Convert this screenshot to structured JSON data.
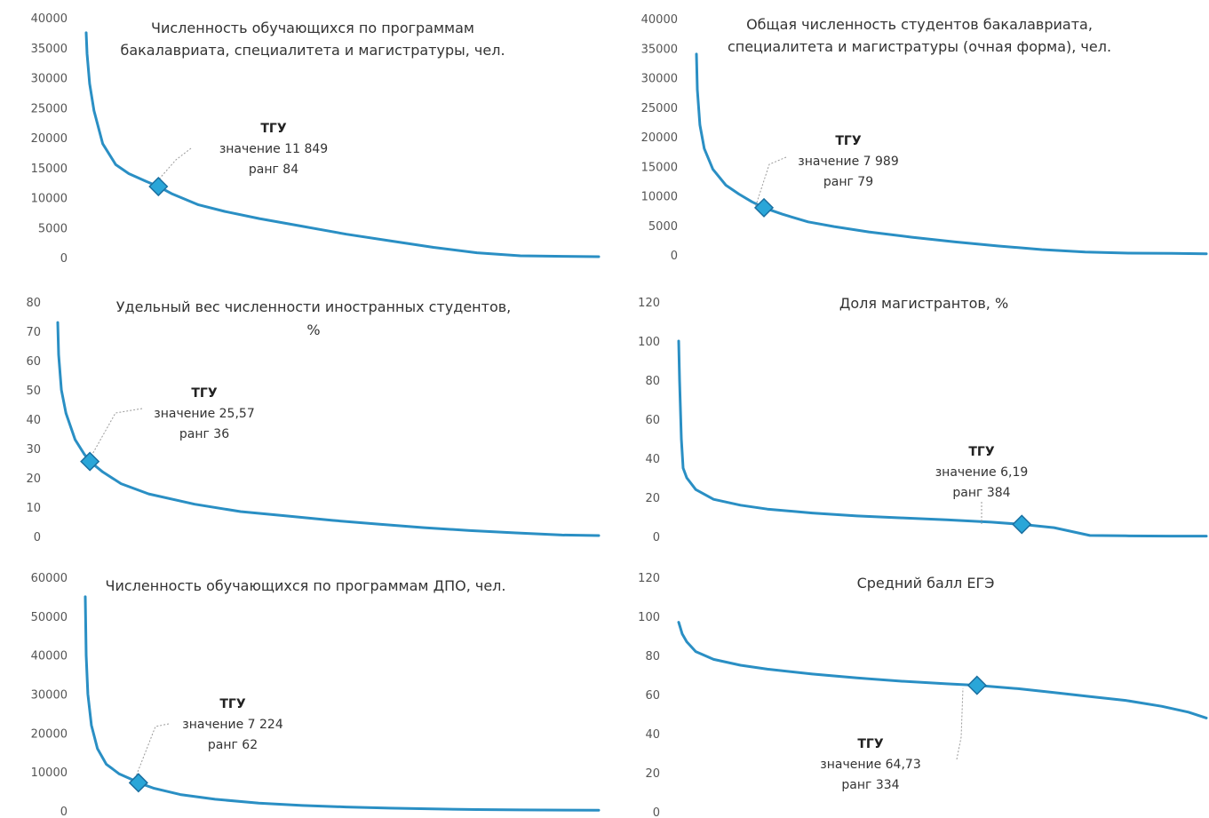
{
  "colors": {
    "line": "#2a8fc4",
    "marker": "#2aa6d8",
    "marker_edge": "#1a6fa0",
    "text": "#333333"
  },
  "chart_data": [
    {
      "type": "line",
      "title": [
        "Численность обучающихся по программам",
        "бакалавриата, специалитета и магистратуры, чел."
      ],
      "ylim": [
        0,
        40000
      ],
      "yticks": [
        "40000",
        "35000",
        "30000",
        "25000",
        "20000",
        "15000",
        "10000",
        "5000",
        "0"
      ],
      "tick_values": [
        40000,
        35000,
        30000,
        25000,
        20000,
        15000,
        10000,
        5000,
        0
      ],
      "xlim": [
        1,
        590
      ],
      "x": [
        1,
        2,
        5,
        10,
        20,
        35,
        50,
        70,
        84,
        100,
        130,
        160,
        200,
        250,
        300,
        350,
        400,
        450,
        500,
        550,
        590
      ],
      "y": [
        37500,
        34000,
        29000,
        24500,
        19000,
        15500,
        14000,
        12700,
        11849,
        10600,
        8800,
        7700,
        6500,
        5200,
        3900,
        2800,
        1700,
        800,
        300,
        200,
        150
      ],
      "highlight": {
        "label": "ТГУ",
        "value_text": "значение 11 849",
        "rank_text": "ранг 84",
        "x": 84,
        "y": 11849
      }
    },
    {
      "type": "line",
      "title": [
        "Общая численность студентов бакалавриата,",
        "специалитета и магистратуры (очная форма), чел."
      ],
      "ylim": [
        0,
        40000
      ],
      "yticks": [
        "40000",
        "35000",
        "30000",
        "25000",
        "20000",
        "15000",
        "10000",
        "5000",
        "0"
      ],
      "tick_values": [
        40000,
        35000,
        30000,
        25000,
        20000,
        15000,
        10000,
        5000,
        0
      ],
      "xlim": [
        1,
        590
      ],
      "x": [
        1,
        2,
        5,
        10,
        20,
        35,
        50,
        65,
        79,
        100,
        130,
        160,
        200,
        250,
        300,
        350,
        400,
        450,
        500,
        550,
        590
      ],
      "y": [
        34000,
        28000,
        22000,
        18000,
        14500,
        11800,
        10300,
        9000,
        7989,
        6900,
        5600,
        4800,
        3900,
        3000,
        2200,
        1500,
        900,
        500,
        300,
        250,
        200
      ],
      "highlight": {
        "label": "ТГУ",
        "value_text": "значение 7 989",
        "rank_text": "ранг 79",
        "x": 79,
        "y": 7989
      }
    },
    {
      "type": "line",
      "title": [
        "Удельный вес численности иностранных студентов,",
        "%"
      ],
      "ylim": [
        0,
        80
      ],
      "yticks": [
        "80",
        "70",
        "60",
        "50",
        "40",
        "30",
        "20",
        "10",
        "0"
      ],
      "tick_values": [
        80,
        70,
        60,
        50,
        40,
        30,
        20,
        10,
        0
      ],
      "xlim": [
        1,
        590
      ],
      "x": [
        1,
        2,
        5,
        10,
        20,
        30,
        36,
        50,
        70,
        100,
        150,
        200,
        250,
        300,
        350,
        400,
        450,
        500,
        550,
        590
      ],
      "y": [
        73,
        62,
        50,
        42,
        33,
        28,
        25.57,
        22,
        18,
        14.5,
        11,
        8.5,
        7,
        5.5,
        4.2,
        3,
        2,
        1.2,
        0.5,
        0.3
      ],
      "highlight": {
        "label": "ТГУ",
        "value_text": "значение 25,57",
        "rank_text": "ранг 36",
        "x": 36,
        "y": 25.57
      }
    },
    {
      "type": "line",
      "title": [
        "Доля магистрантов, %"
      ],
      "ylim": [
        0,
        120
      ],
      "yticks": [
        "120",
        "100",
        "80",
        "60",
        "40",
        "20",
        "0"
      ],
      "tick_values": [
        120,
        100,
        80,
        60,
        40,
        20,
        0
      ],
      "xlim": [
        1,
        590
      ],
      "x": [
        1,
        2,
        4,
        6,
        10,
        20,
        40,
        70,
        100,
        150,
        200,
        250,
        300,
        350,
        384,
        420,
        460,
        500,
        550,
        590
      ],
      "y": [
        100,
        80,
        50,
        35,
        30,
        24,
        19,
        16,
        14,
        12,
        10.5,
        9.5,
        8.5,
        7.3,
        6.19,
        4.5,
        0.5,
        0.3,
        0.2,
        0.2
      ],
      "highlight": {
        "label": "ТГУ",
        "value_text": "значение 6,19",
        "rank_text": "ранг 384",
        "x": 384,
        "y": 6.19
      }
    },
    {
      "type": "line",
      "title": [
        "Численность обучающихся по программам ДПО, чел."
      ],
      "ylim": [
        0,
        60000
      ],
      "yticks": [
        "60000",
        "50000",
        "40000",
        "30000",
        "20000",
        "10000",
        "0"
      ],
      "tick_values": [
        60000,
        50000,
        40000,
        30000,
        20000,
        10000,
        0
      ],
      "xlim": [
        1,
        590
      ],
      "x": [
        1,
        2,
        4,
        8,
        15,
        25,
        40,
        55,
        62,
        80,
        110,
        150,
        200,
        250,
        300,
        350,
        400,
        450,
        500,
        590
      ],
      "y": [
        55000,
        40000,
        30000,
        22000,
        16000,
        12000,
        9500,
        8000,
        7224,
        5800,
        4200,
        3000,
        2000,
        1400,
        1000,
        700,
        500,
        350,
        250,
        150
      ],
      "highlight": {
        "label": "ТГУ",
        "value_text": "значение 7 224",
        "rank_text": "ранг 62",
        "x": 62,
        "y": 7224
      }
    },
    {
      "type": "line",
      "title": [
        "Средний балл ЕГЭ"
      ],
      "ylim": [
        0,
        120
      ],
      "yticks": [
        "120",
        "100",
        "80",
        "60",
        "40",
        "20",
        "0"
      ],
      "tick_values": [
        120,
        100,
        80,
        60,
        40,
        20,
        0
      ],
      "xlim": [
        1,
        590
      ],
      "x": [
        1,
        5,
        10,
        20,
        40,
        70,
        100,
        150,
        200,
        250,
        300,
        334,
        380,
        420,
        460,
        500,
        540,
        570,
        590
      ],
      "y": [
        97,
        91,
        87,
        82,
        78,
        75,
        73,
        70.5,
        68.5,
        66.8,
        65.5,
        64.73,
        63,
        61,
        59,
        57,
        54,
        51,
        48
      ],
      "highlight": {
        "label": "ТГУ",
        "value_text": "значение 64,73",
        "rank_text": "ранг 334",
        "x": 334,
        "y": 64.73
      }
    }
  ]
}
